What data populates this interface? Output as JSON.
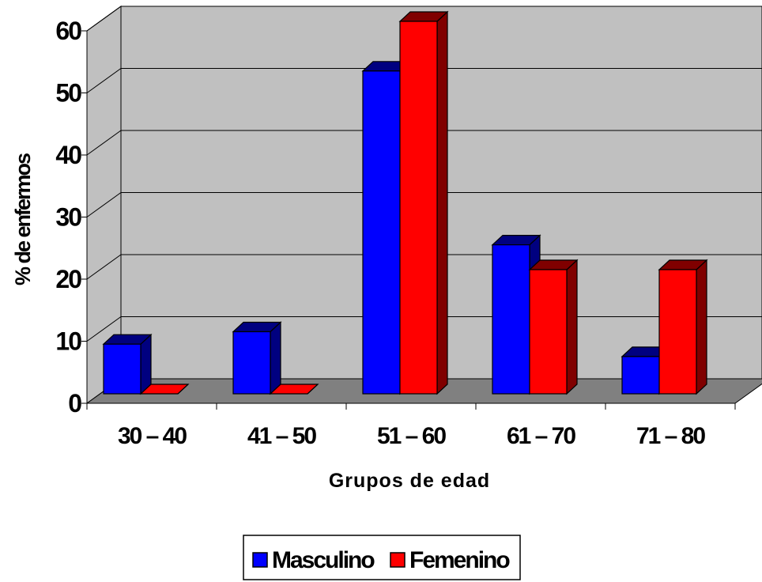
{
  "chart_data": {
    "type": "bar",
    "title": "",
    "xlabel": "Grupos de edad",
    "ylabel": "% de enfermos",
    "categories": [
      "30 – 40",
      "41 – 50",
      "51 – 60",
      "61 – 70",
      "71 – 80"
    ],
    "series": [
      {
        "name": "Masculino",
        "values": [
          8,
          10,
          52,
          24,
          6
        ],
        "color": "#0000FF"
      },
      {
        "name": "Femenino",
        "values": [
          0,
          0,
          60,
          20,
          20
        ],
        "color": "#FF0000"
      }
    ],
    "ylim": [
      0,
      60
    ],
    "yticks": [
      "0",
      "10",
      "20",
      "30",
      "40",
      "50",
      "60"
    ],
    "grid": true,
    "legend_position": "bottom",
    "three_d": true,
    "colors": {
      "wall": "#C0C0C0",
      "floor": "#808080",
      "masculino_side": "#000080",
      "femenino_side": "#800000"
    }
  }
}
